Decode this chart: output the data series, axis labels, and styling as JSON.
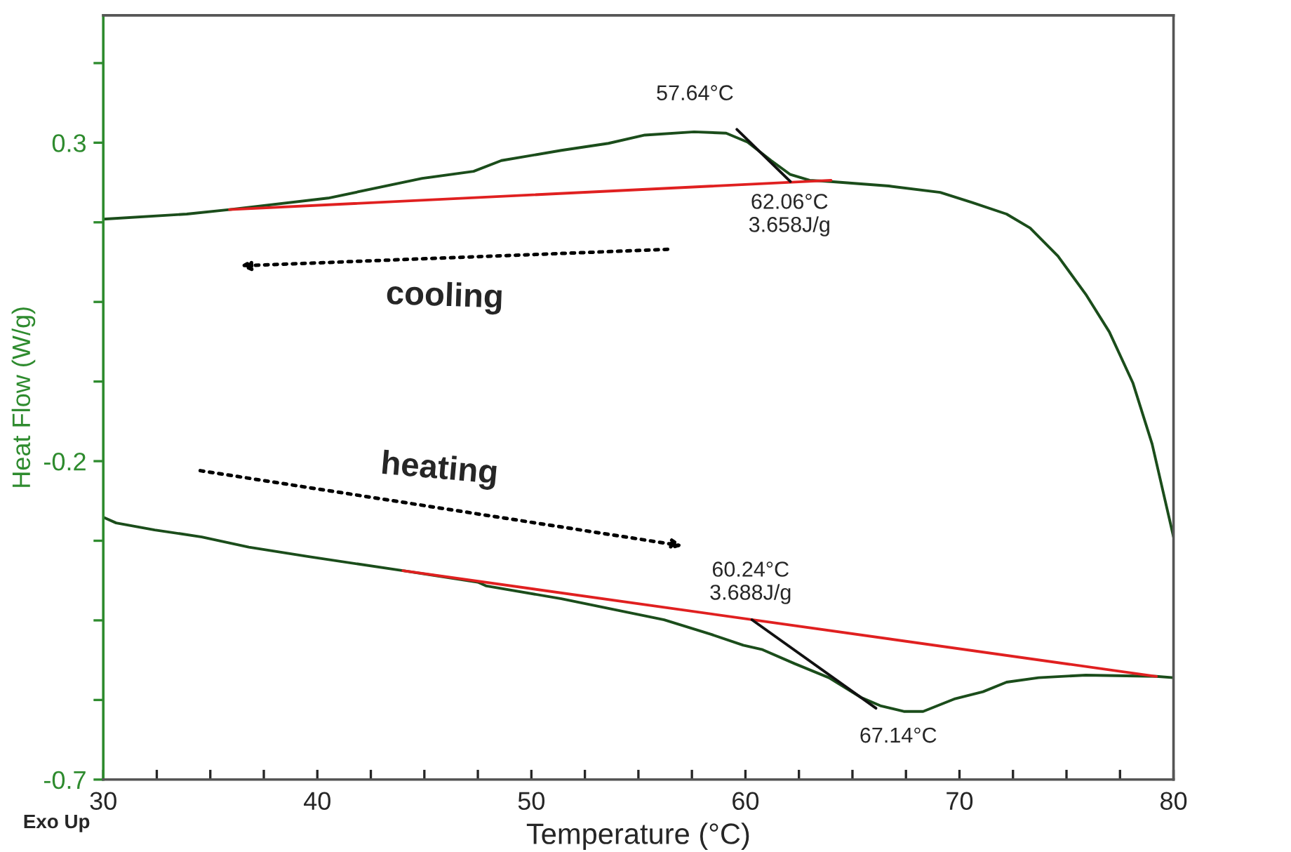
{
  "chart_data": {
    "type": "line",
    "xlabel": "Temperature (°C)",
    "ylabel": "Heat Flow (W/g)",
    "xlim": [
      30,
      80
    ],
    "ylim": [
      -0.7,
      0.5
    ],
    "xticks": [
      30,
      {
        "value": 32.5,
        "label": null
      },
      {
        "value": 35,
        "label": null
      },
      {
        "value": 37.5,
        "label": null
      },
      40,
      {
        "value": 42.5,
        "label": null
      },
      {
        "value": 45,
        "label": null
      },
      {
        "value": 47.5,
        "label": null
      },
      50,
      {
        "value": 52.5,
        "label": null
      },
      {
        "value": 55,
        "label": null
      },
      {
        "value": 57.5,
        "label": null
      },
      60,
      {
        "value": 62.5,
        "label": null
      },
      {
        "value": 65,
        "label": null
      },
      {
        "value": 67.5,
        "label": null
      },
      70,
      {
        "value": 72.5,
        "label": null
      },
      {
        "value": 75,
        "label": null
      },
      {
        "value": 77.5,
        "label": null
      },
      80
    ],
    "yticks": [
      -0.7,
      {
        "value": -0.575,
        "label": null
      },
      {
        "value": -0.45,
        "label": null
      },
      {
        "value": -0.325,
        "label": null
      },
      -0.2,
      {
        "value": -0.075,
        "label": null
      },
      {
        "value": 0.05,
        "label": null
      },
      {
        "value": 0.175,
        "label": null
      },
      0.3,
      {
        "value": 0.425,
        "label": null
      }
    ],
    "grid": false,
    "legend": false,
    "series": [
      {
        "color": "#1b4d1b",
        "x": [
          30,
          33.9,
          35.9,
          40.5,
          44.9,
          47.3,
          48.6,
          51.4,
          53.6,
          55.3,
          57.6,
          59.1,
          60.1,
          61.2,
          62.1,
          63.0,
          64.0,
          66.7,
          69.1,
          70.6,
          72.2,
          73.3,
          74.6,
          75.9,
          77.0,
          78.1,
          79.0,
          80
        ],
        "values": [
          0.18,
          0.188,
          0.195,
          0.213,
          0.244,
          0.255,
          0.272,
          0.288,
          0.299,
          0.312,
          0.317,
          0.315,
          0.301,
          0.272,
          0.25,
          0.241,
          0.239,
          0.232,
          0.222,
          0.206,
          0.188,
          0.166,
          0.122,
          0.062,
          0.003,
          -0.077,
          -0.173,
          -0.319
        ]
      },
      {
        "color": "#1b4d1b",
        "x": [
          30,
          30.6,
          32.4,
          34.6,
          36.8,
          39.6,
          44.0,
          47.5,
          47.9,
          51.4,
          54.0,
          56.2,
          58.4,
          59.9,
          60.8,
          62.3,
          63.9,
          65.4,
          66.3,
          67.4,
          68.3,
          69.8,
          71.1,
          72.2,
          73.7,
          75.9,
          79.2,
          80
        ],
        "values": [
          -0.288,
          -0.297,
          -0.308,
          -0.319,
          -0.335,
          -0.35,
          -0.372,
          -0.39,
          -0.396,
          -0.416,
          -0.434,
          -0.449,
          -0.472,
          -0.489,
          -0.496,
          -0.518,
          -0.54,
          -0.571,
          -0.584,
          -0.593,
          -0.593,
          -0.573,
          -0.562,
          -0.547,
          -0.54,
          -0.536,
          -0.538,
          -0.54
        ]
      },
      {
        "color": "#e02020",
        "x": [
          35.9,
          64.0
        ],
        "values": [
          0.195,
          0.241
        ]
      },
      {
        "color": "#e02020",
        "x": [
          44.0,
          79.2
        ],
        "values": [
          -0.372,
          -0.538
        ]
      },
      {
        "color": "#111111",
        "x": [
          59.6,
          62.1
        ],
        "values": [
          0.321,
          0.239
        ]
      },
      {
        "color": "#111111",
        "x": [
          60.3,
          66.1
        ],
        "values": [
          -0.449,
          -0.588
        ]
      }
    ],
    "annotations": [
      {
        "text": "57.64°C",
        "x": 57.64,
        "y": 0.317
      },
      {
        "text": "62.06°C\n3.658J/g",
        "x": 62.06,
        "y": 0.239
      },
      {
        "text": "60.24°C\n3.688J/g",
        "x": 60.24,
        "y": -0.449
      },
      {
        "text": "67.14°C",
        "x": 67.14,
        "y": -0.593
      },
      "cooling",
      "heating",
      "Exo Up"
    ]
  }
}
